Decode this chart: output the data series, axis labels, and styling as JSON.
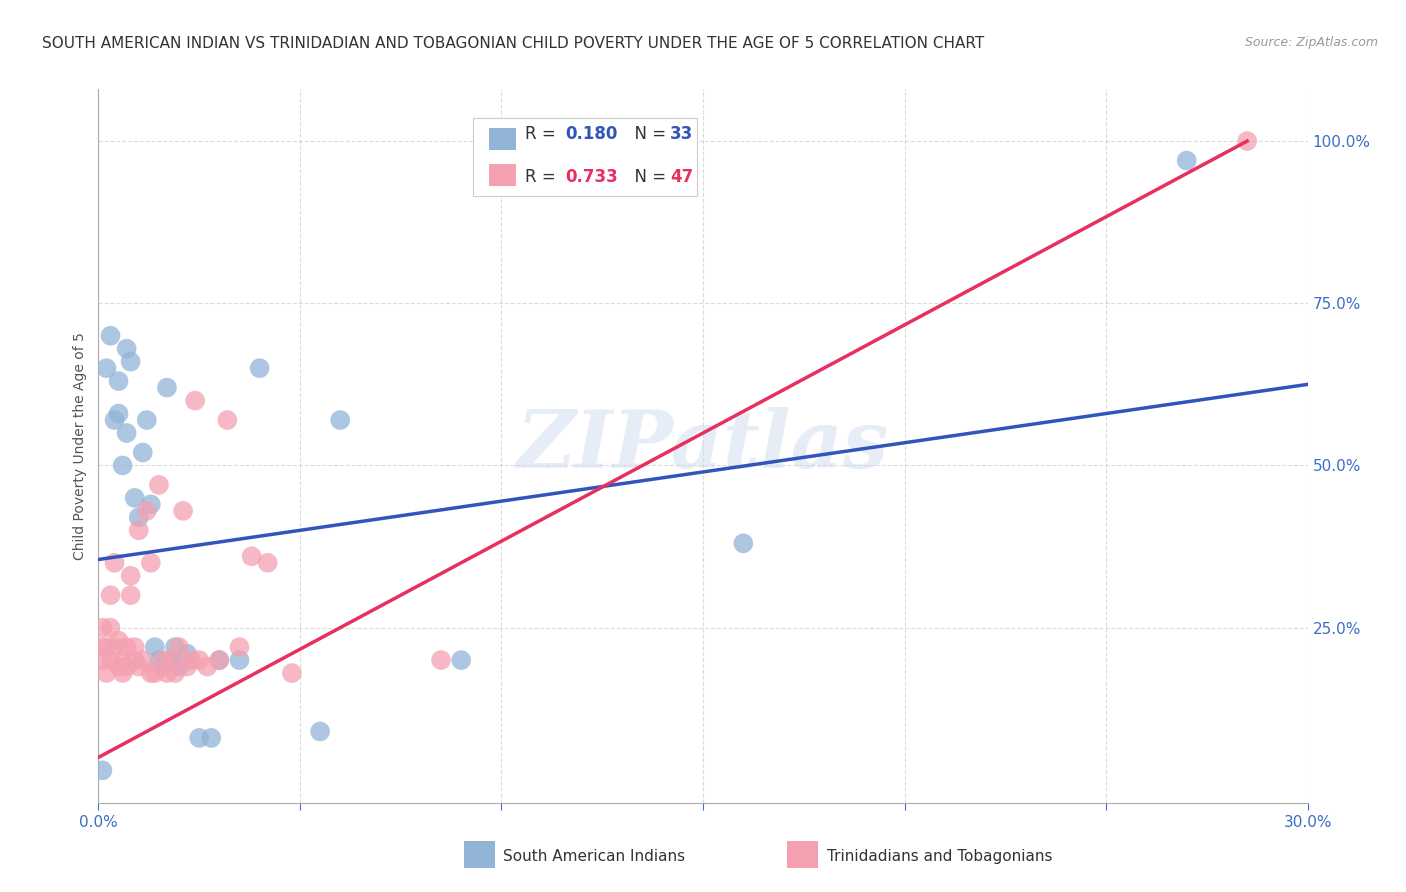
{
  "title": "SOUTH AMERICAN INDIAN VS TRINIDADIAN AND TOBAGONIAN CHILD POVERTY UNDER THE AGE OF 5 CORRELATION CHART",
  "source": "Source: ZipAtlas.com",
  "ylabel": "Child Poverty Under the Age of 5",
  "xlim": [
    0.0,
    0.3
  ],
  "ylim": [
    -0.02,
    1.08
  ],
  "yticks_right": [
    0.25,
    0.5,
    0.75,
    1.0
  ],
  "ytick_right_labels": [
    "25.0%",
    "50.0%",
    "75.0%",
    "100.0%"
  ],
  "watermark": "ZIPatlas",
  "blue_color": "#92B4D7",
  "pink_color": "#F4A0B0",
  "blue_line_color": "#3355BB",
  "pink_line_color": "#E83060",
  "R_blue": 0.18,
  "N_blue": 33,
  "R_pink": 0.733,
  "N_pink": 47,
  "legend_label_blue": "South American Indians",
  "legend_label_pink": "Trinidadians and Tobagonians",
  "blue_scatter_x": [
    0.001,
    0.002,
    0.003,
    0.004,
    0.005,
    0.005,
    0.006,
    0.007,
    0.007,
    0.008,
    0.009,
    0.01,
    0.011,
    0.012,
    0.013,
    0.014,
    0.015,
    0.016,
    0.017,
    0.018,
    0.019,
    0.02,
    0.022,
    0.025,
    0.028,
    0.03,
    0.035,
    0.04,
    0.055,
    0.06,
    0.09,
    0.16,
    0.27
  ],
  "blue_scatter_y": [
    0.03,
    0.65,
    0.7,
    0.57,
    0.58,
    0.63,
    0.5,
    0.55,
    0.68,
    0.66,
    0.45,
    0.42,
    0.52,
    0.57,
    0.44,
    0.22,
    0.2,
    0.19,
    0.62,
    0.2,
    0.22,
    0.19,
    0.21,
    0.08,
    0.08,
    0.2,
    0.2,
    0.65,
    0.09,
    0.57,
    0.2,
    0.38,
    0.97
  ],
  "pink_scatter_x": [
    0.001,
    0.001,
    0.001,
    0.002,
    0.002,
    0.003,
    0.003,
    0.003,
    0.004,
    0.004,
    0.005,
    0.005,
    0.006,
    0.006,
    0.007,
    0.007,
    0.008,
    0.008,
    0.009,
    0.009,
    0.01,
    0.01,
    0.011,
    0.012,
    0.013,
    0.013,
    0.014,
    0.015,
    0.016,
    0.017,
    0.018,
    0.019,
    0.02,
    0.021,
    0.022,
    0.023,
    0.024,
    0.025,
    0.027,
    0.03,
    0.032,
    0.035,
    0.038,
    0.042,
    0.048,
    0.085,
    0.285
  ],
  "pink_scatter_y": [
    0.2,
    0.22,
    0.25,
    0.18,
    0.22,
    0.2,
    0.25,
    0.3,
    0.22,
    0.35,
    0.19,
    0.23,
    0.18,
    0.2,
    0.19,
    0.22,
    0.3,
    0.33,
    0.2,
    0.22,
    0.19,
    0.4,
    0.2,
    0.43,
    0.35,
    0.18,
    0.18,
    0.47,
    0.2,
    0.18,
    0.2,
    0.18,
    0.22,
    0.43,
    0.19,
    0.2,
    0.6,
    0.2,
    0.19,
    0.2,
    0.57,
    0.22,
    0.36,
    0.35,
    0.18,
    0.2,
    1.0
  ],
  "blue_line_x0": 0.0,
  "blue_line_y0": 0.355,
  "blue_line_x1": 0.3,
  "blue_line_y1": 0.625,
  "pink_line_x0": 0.0,
  "pink_line_y0": 0.05,
  "pink_line_x1": 0.285,
  "pink_line_y1": 1.0,
  "background_color": "#FFFFFF",
  "grid_color": "#CCCCCC",
  "title_fontsize": 11,
  "axis_label_fontsize": 10,
  "tick_fontsize": 11
}
